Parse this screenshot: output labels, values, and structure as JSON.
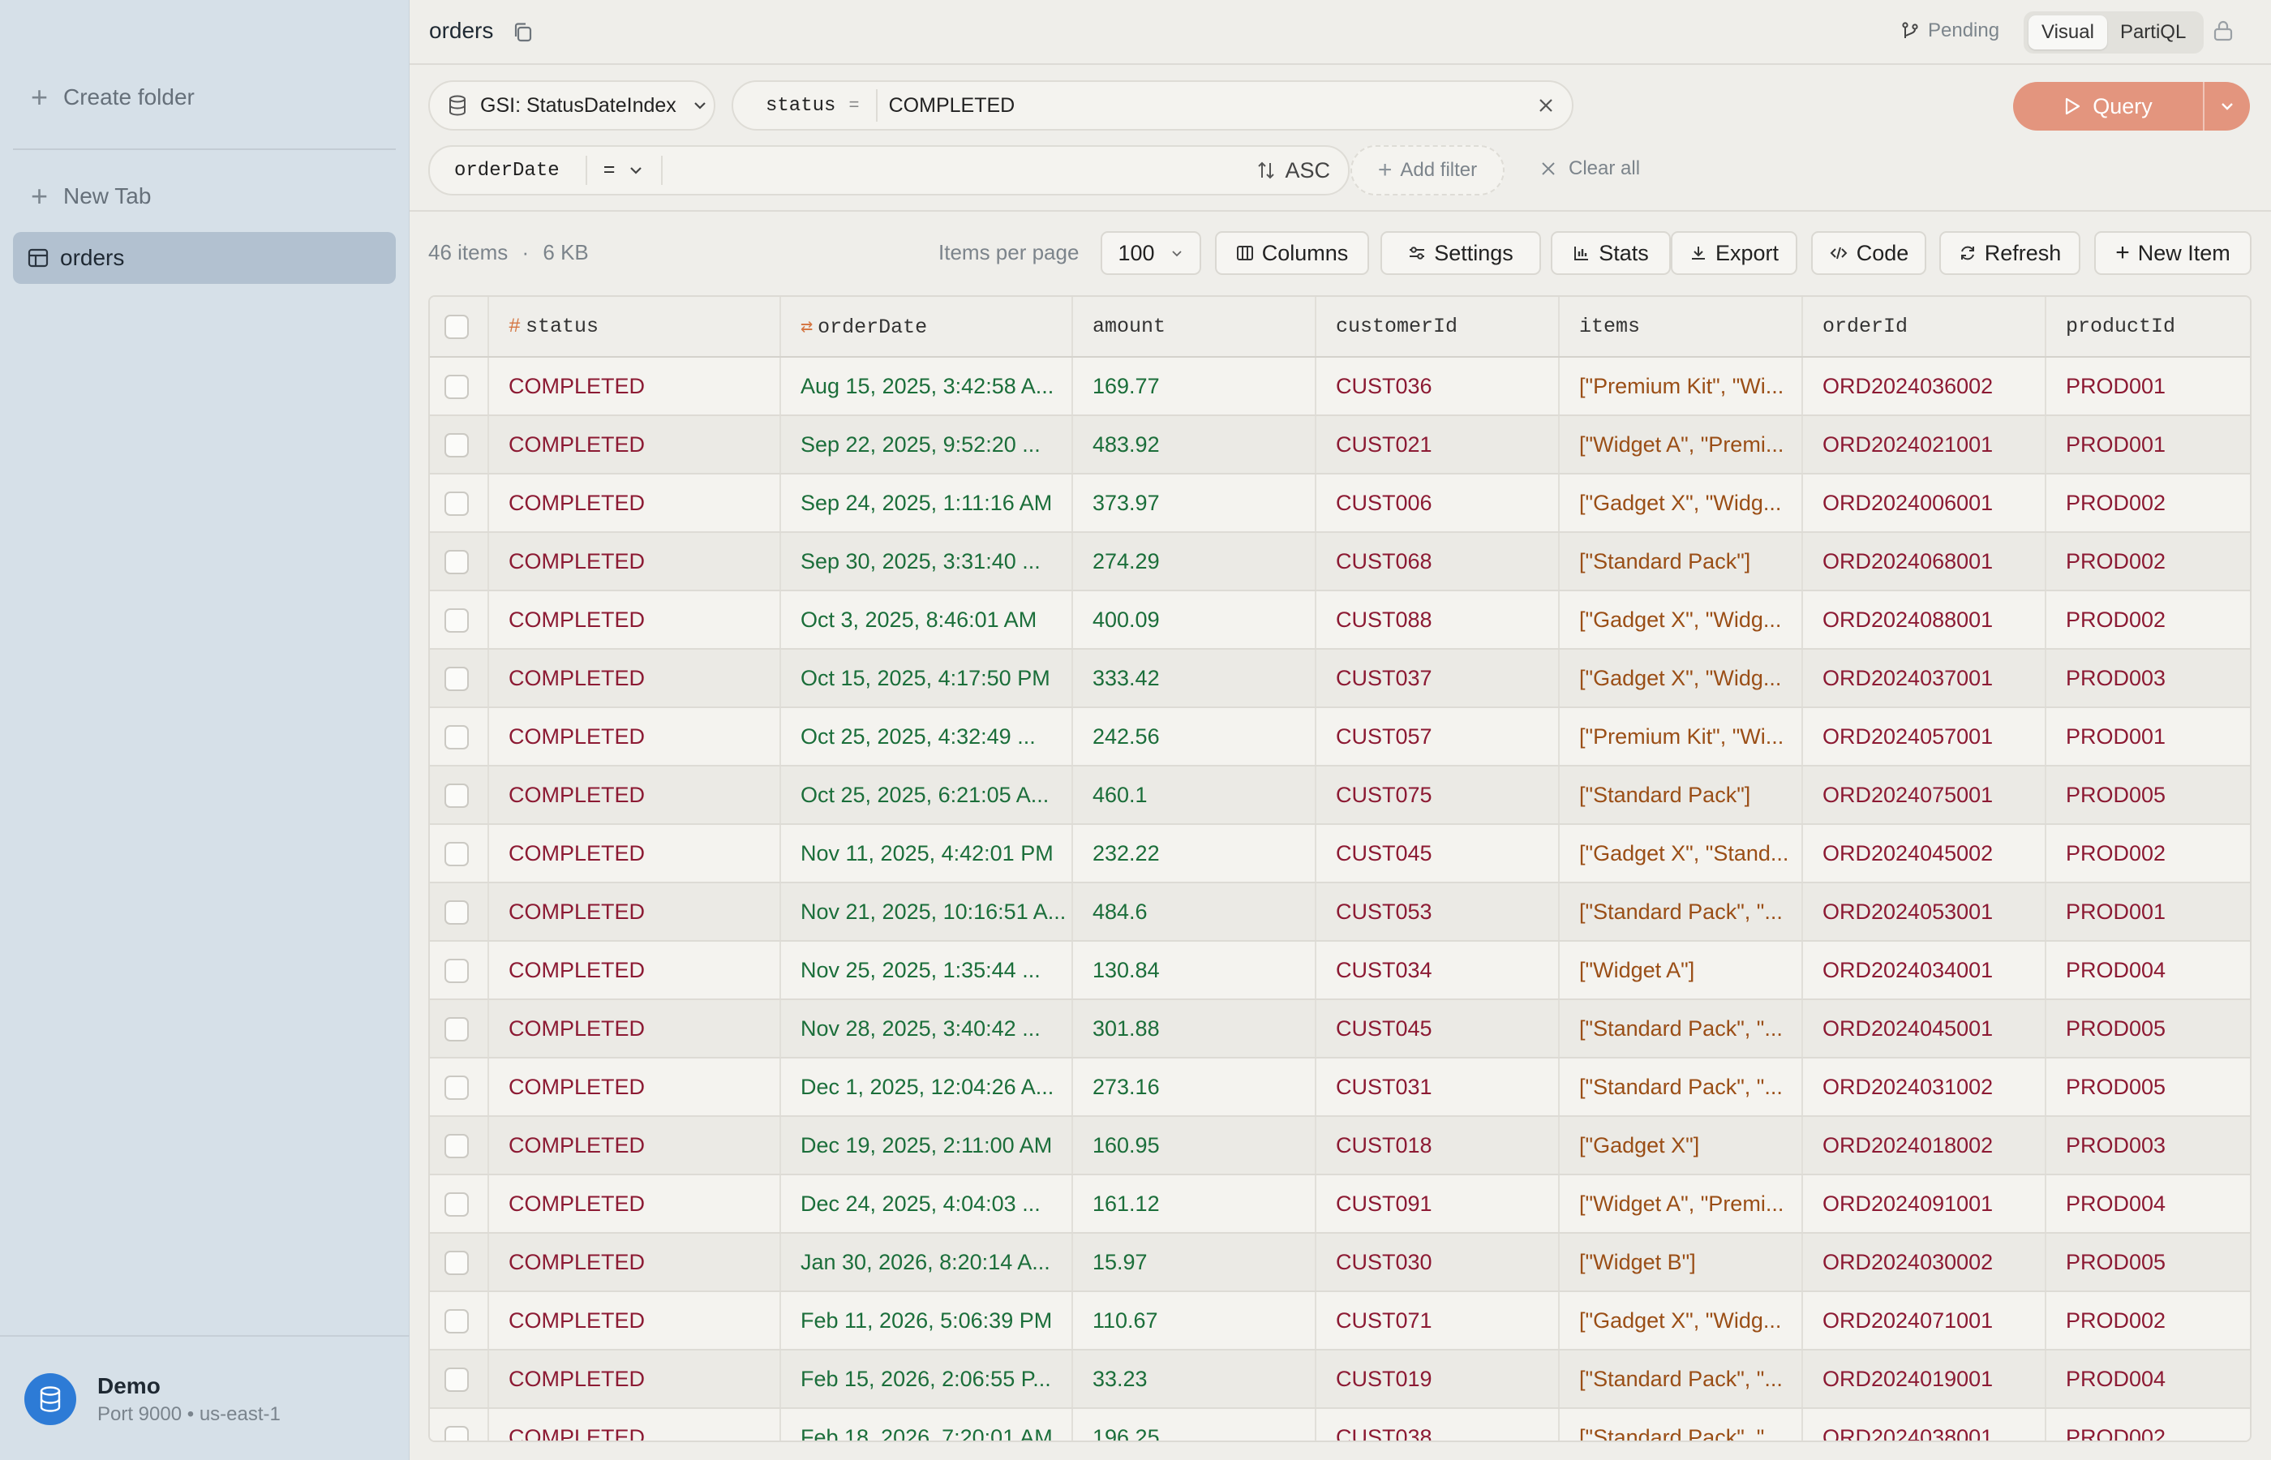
{
  "sidebar": {
    "create_folder": "Create folder",
    "new_tab": "New Tab",
    "active_tab": "orders",
    "connection": {
      "name": "Demo",
      "details": "Port 9000 • us-east-1"
    }
  },
  "header": {
    "title": "orders",
    "pending": "Pending",
    "modes": [
      "Visual",
      "PartiQL"
    ],
    "active_mode": "Visual"
  },
  "query": {
    "index": "GSI: StatusDateIndex",
    "pk_name": "status",
    "pk_op": "=",
    "pk_value": "COMPLETED",
    "sk_name": "orderDate",
    "sk_op": "=",
    "sort": "ASC",
    "add_filter": "Add filter",
    "clear_all": "Clear all",
    "run": "Query"
  },
  "toolbar": {
    "count": "46 items",
    "sep": "·",
    "size": "6 KB",
    "ipp_label": "Items per page",
    "ipp_value": "100",
    "columns": "Columns",
    "settings": "Settings",
    "stats": "Stats",
    "export": "Export",
    "code": "Code",
    "refresh": "Refresh",
    "new_item": "New Item"
  },
  "table": {
    "columns": [
      "status",
      "orderDate",
      "amount",
      "customerId",
      "items",
      "orderId",
      "productId"
    ],
    "rows": [
      [
        "COMPLETED",
        "Aug 15, 2025, 3:42:58 A...",
        "169.77",
        "CUST036",
        "[\"Premium Kit\", \"Wi...",
        "ORD2024036002",
        "PROD001"
      ],
      [
        "COMPLETED",
        "Sep 22, 2025, 9:52:20 ...",
        "483.92",
        "CUST021",
        "[\"Widget A\", \"Premi...",
        "ORD2024021001",
        "PROD001"
      ],
      [
        "COMPLETED",
        "Sep 24, 2025, 1:11:16 AM",
        "373.97",
        "CUST006",
        "[\"Gadget X\", \"Widg...",
        "ORD2024006001",
        "PROD002"
      ],
      [
        "COMPLETED",
        "Sep 30, 2025, 3:31:40 ...",
        "274.29",
        "CUST068",
        "[\"Standard Pack\"]",
        "ORD2024068001",
        "PROD002"
      ],
      [
        "COMPLETED",
        "Oct 3, 2025, 8:46:01 AM",
        "400.09",
        "CUST088",
        "[\"Gadget X\", \"Widg...",
        "ORD2024088001",
        "PROD002"
      ],
      [
        "COMPLETED",
        "Oct 15, 2025, 4:17:50 PM",
        "333.42",
        "CUST037",
        "[\"Gadget X\", \"Widg...",
        "ORD2024037001",
        "PROD003"
      ],
      [
        "COMPLETED",
        "Oct 25, 2025, 4:32:49 ...",
        "242.56",
        "CUST057",
        "[\"Premium Kit\", \"Wi...",
        "ORD2024057001",
        "PROD001"
      ],
      [
        "COMPLETED",
        "Oct 25, 2025, 6:21:05 A...",
        "460.1",
        "CUST075",
        "[\"Standard Pack\"]",
        "ORD2024075001",
        "PROD005"
      ],
      [
        "COMPLETED",
        "Nov 11, 2025, 4:42:01 PM",
        "232.22",
        "CUST045",
        "[\"Gadget X\", \"Stand...",
        "ORD2024045002",
        "PROD002"
      ],
      [
        "COMPLETED",
        "Nov 21, 2025, 10:16:51 A...",
        "484.6",
        "CUST053",
        "[\"Standard Pack\", \"...",
        "ORD2024053001",
        "PROD001"
      ],
      [
        "COMPLETED",
        "Nov 25, 2025, 1:35:44 ...",
        "130.84",
        "CUST034",
        "[\"Widget A\"]",
        "ORD2024034001",
        "PROD004"
      ],
      [
        "COMPLETED",
        "Nov 28, 2025, 3:40:42 ...",
        "301.88",
        "CUST045",
        "[\"Standard Pack\", \"...",
        "ORD2024045001",
        "PROD005"
      ],
      [
        "COMPLETED",
        "Dec 1, 2025, 12:04:26 A...",
        "273.16",
        "CUST031",
        "[\"Standard Pack\", \"...",
        "ORD2024031002",
        "PROD005"
      ],
      [
        "COMPLETED",
        "Dec 19, 2025, 2:11:00 AM",
        "160.95",
        "CUST018",
        "[\"Gadget X\"]",
        "ORD2024018002",
        "PROD003"
      ],
      [
        "COMPLETED",
        "Dec 24, 2025, 4:04:03 ...",
        "161.12",
        "CUST091",
        "[\"Widget A\", \"Premi...",
        "ORD2024091001",
        "PROD004"
      ],
      [
        "COMPLETED",
        "Jan 30, 2026, 8:20:14 A...",
        "15.97",
        "CUST030",
        "[\"Widget B\"]",
        "ORD2024030002",
        "PROD005"
      ],
      [
        "COMPLETED",
        "Feb 11, 2026, 5:06:39 PM",
        "110.67",
        "CUST071",
        "[\"Gadget X\", \"Widg...",
        "ORD2024071001",
        "PROD002"
      ],
      [
        "COMPLETED",
        "Feb 15, 2026, 2:06:55 P...",
        "33.23",
        "CUST019",
        "[\"Standard Pack\", \"...",
        "ORD2024019001",
        "PROD004"
      ],
      [
        "COMPLETED",
        "Feb 18, 2026, 7:20:01 AM",
        "196.25",
        "CUST038",
        "[\"Standard Pack\", \"...",
        "ORD2024038001",
        "PROD002"
      ]
    ]
  },
  "colors": {
    "sidebar_bg": "#d6e0e8",
    "active_tab_bg": "#b2c1d0",
    "query_button": "#e3957e",
    "text_red": "#8c1a33",
    "text_green": "#1b6e3a",
    "text_orange": "#9a4e16",
    "avatar_blue": "#2d7bd6"
  },
  "icons": [
    "plus-icon",
    "table-icon",
    "database-icon",
    "copy-icon",
    "branch-icon",
    "lock-icon",
    "chevron-down-icon",
    "close-icon",
    "sort-icon",
    "play-icon",
    "columns-icon",
    "sliders-icon",
    "bar-chart-icon",
    "download-icon",
    "code-icon",
    "refresh-icon",
    "hash-icon",
    "swap-icon"
  ]
}
